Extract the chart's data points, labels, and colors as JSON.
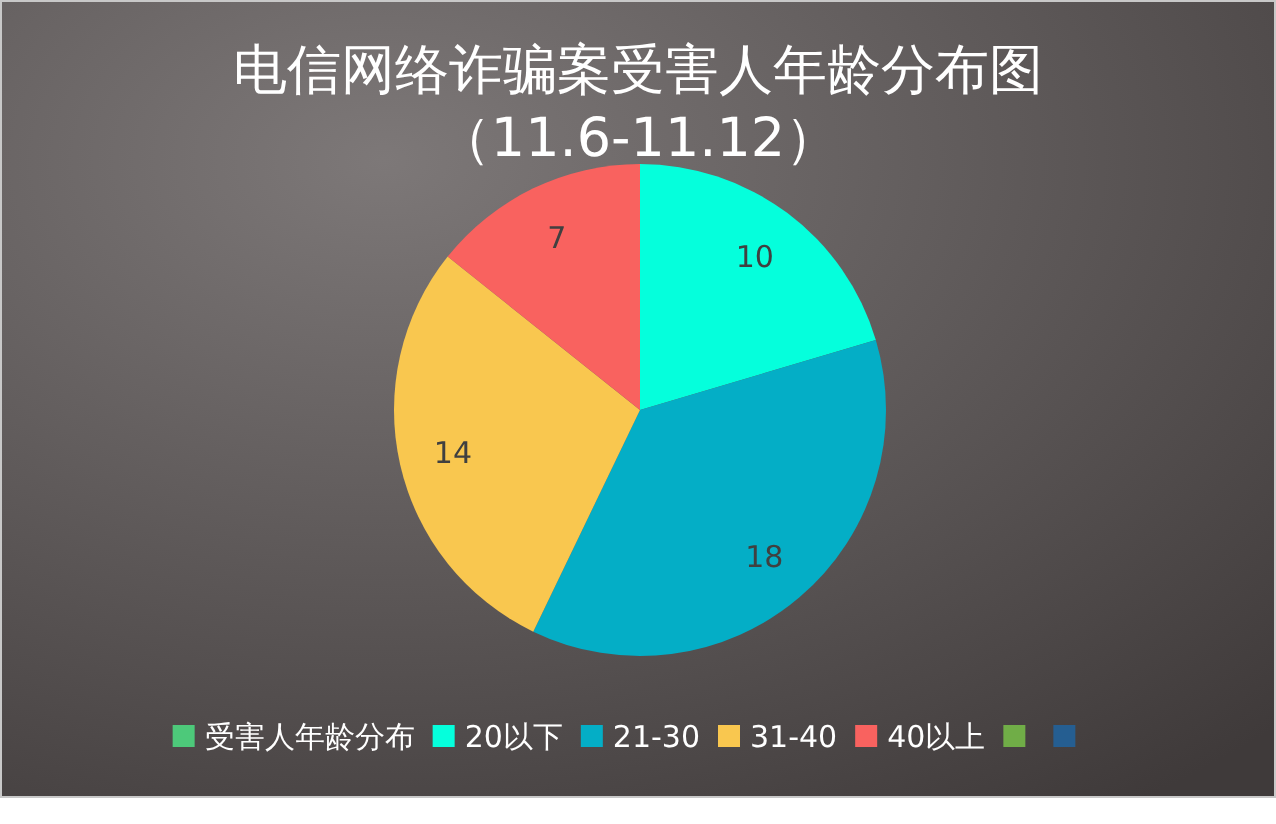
{
  "chart_data": {
    "type": "pie",
    "title": "电信网络诈骗案受害人年龄分布图",
    "subtitle": "（11.6-11.12）",
    "categories": [
      "20以下",
      "21-30",
      "31-40",
      "40以上"
    ],
    "series": [
      {
        "name": "受害人年龄分布",
        "color": "#4dc97a",
        "values": [
          10,
          18,
          14,
          7
        ]
      }
    ],
    "colors": [
      "#05ffdc",
      "#04aec6",
      "#f9c74f",
      "#f9625f"
    ],
    "data_labels": true,
    "legend": "bottom"
  }
}
